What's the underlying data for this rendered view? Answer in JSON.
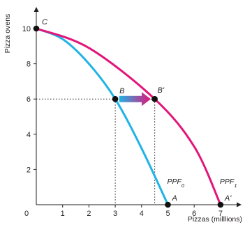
{
  "chart_data": {
    "type": "line",
    "xlabel": "Pizzas (milllions)",
    "ylabel": "Pizza ovens",
    "xlim": [
      0,
      8
    ],
    "ylim": [
      0,
      11
    ],
    "x_ticks": [
      "0",
      "1",
      "2",
      "3",
      "4",
      "5",
      "6",
      "7"
    ],
    "y_ticks": [
      "2",
      "4",
      "6",
      "8",
      "10"
    ],
    "grid": false,
    "series": [
      {
        "name": "PPF0",
        "label_main": "PPF",
        "label_sub": "0",
        "color": "#1fb3e6",
        "x": [
          0,
          1,
          2,
          3,
          4,
          5
        ],
        "y": [
          10,
          9.4,
          8.0,
          6.0,
          3.2,
          0
        ]
      },
      {
        "name": "PPF1",
        "label_main": "PPF",
        "label_sub": "1",
        "color": "#e2157a",
        "x": [
          0,
          2,
          4.5,
          6,
          7
        ],
        "y": [
          10,
          8.9,
          6.0,
          3.3,
          0
        ]
      }
    ],
    "points": [
      {
        "label": "C",
        "x": 0,
        "y": 10
      },
      {
        "label": "B",
        "x": 3,
        "y": 6
      },
      {
        "label": "B'",
        "x": 4.5,
        "y": 6
      },
      {
        "label": "A",
        "x": 5,
        "y": 0
      },
      {
        "label": "A'",
        "x": 7,
        "y": 0
      }
    ],
    "arrow": {
      "from_x": 3.15,
      "to_x": 4.35,
      "y": 6,
      "color_start": "#1fb3e6",
      "color_end": "#e2157a"
    }
  }
}
